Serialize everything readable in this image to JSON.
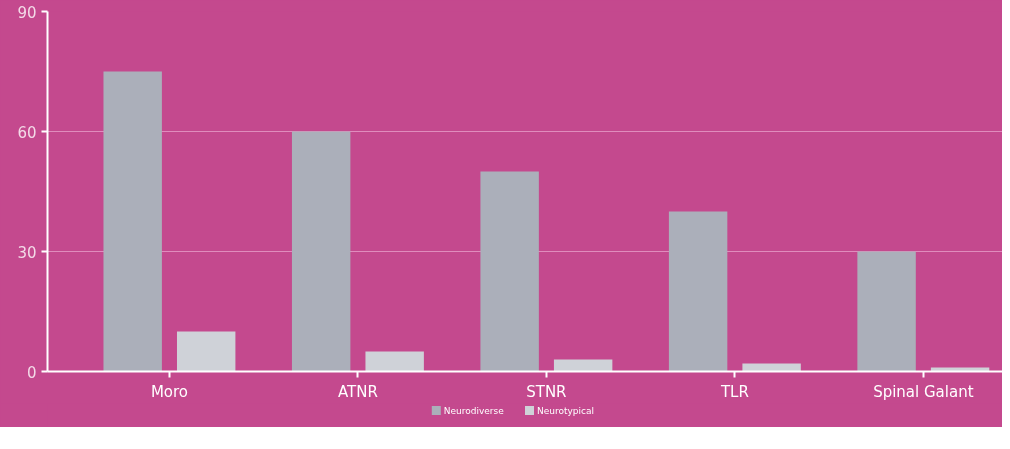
{
  "chart_data": {
    "type": "bar",
    "categories": [
      "Moro",
      "ATNR",
      "STNR",
      "TLR",
      "Spinal Galant"
    ],
    "series": [
      {
        "name": "Neurodiverse",
        "color": "#abafba",
        "values": [
          75,
          60,
          50,
          40,
          30
        ]
      },
      {
        "name": "Neurotypical",
        "color": "#cfd2d8",
        "values": [
          10,
          5,
          3,
          2,
          1
        ]
      }
    ],
    "ylim": [
      0,
      90
    ],
    "yticks": [
      0,
      30,
      60,
      90
    ],
    "grid": "y",
    "legend": "bottom"
  }
}
